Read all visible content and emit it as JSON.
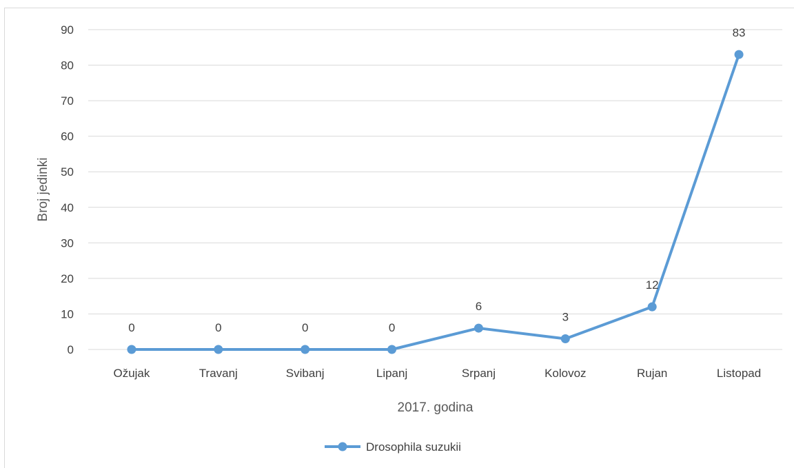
{
  "chart_data": {
    "type": "line",
    "categories": [
      "Ožujak",
      "Travanj",
      "Svibanj",
      "Lipanj",
      "Srpanj",
      "Kolovoz",
      "Rujan",
      "Listopad"
    ],
    "series": [
      {
        "name": "Drosophila suzukii",
        "values": [
          0,
          0,
          0,
          0,
          6,
          3,
          12,
          83
        ],
        "color": "#5b9bd5"
      }
    ],
    "xlabel": "2017. godina",
    "ylabel": "Broj jedinki",
    "ylim": [
      0,
      90
    ],
    "yticks": [
      0,
      10,
      20,
      30,
      40,
      50,
      60,
      70,
      80,
      90
    ],
    "grid": true,
    "data_labels": true,
    "legend_position": "bottom",
    "gridline_color": "#d9d9d9"
  }
}
